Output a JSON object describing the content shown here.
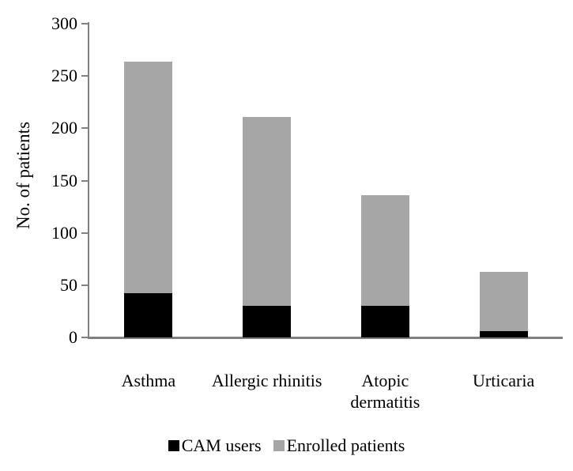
{
  "figure": {
    "background": "#ffffff",
    "axis_color": "#808080",
    "text_color": "#000000"
  },
  "chart_data": {
    "type": "bar",
    "subtype": "stacked-bar",
    "title": "",
    "xlabel": "",
    "ylabel": "No. of patients",
    "ylim": [
      0,
      300
    ],
    "yticks": [
      0,
      50,
      100,
      150,
      200,
      250,
      300
    ],
    "grid": false,
    "legend_position": "bottom",
    "categories": [
      "Asthma",
      "Allergic rhinitis",
      "Atopic dermatitis",
      "Urticaria"
    ],
    "category_lines": [
      [
        "Asthma"
      ],
      [
        "Allergic rhinitis"
      ],
      [
        "Atopic",
        "dermatitis"
      ],
      [
        "Urticaria"
      ]
    ],
    "series": [
      {
        "name": "CAM users",
        "color": "#000000",
        "values": [
          42,
          30,
          30,
          6
        ]
      },
      {
        "name": "Enrolled patients",
        "color": "#a6a6a6",
        "values": [
          222,
          181,
          106,
          57
        ]
      }
    ],
    "stack_totals": [
      264,
      211,
      136,
      63
    ]
  }
}
